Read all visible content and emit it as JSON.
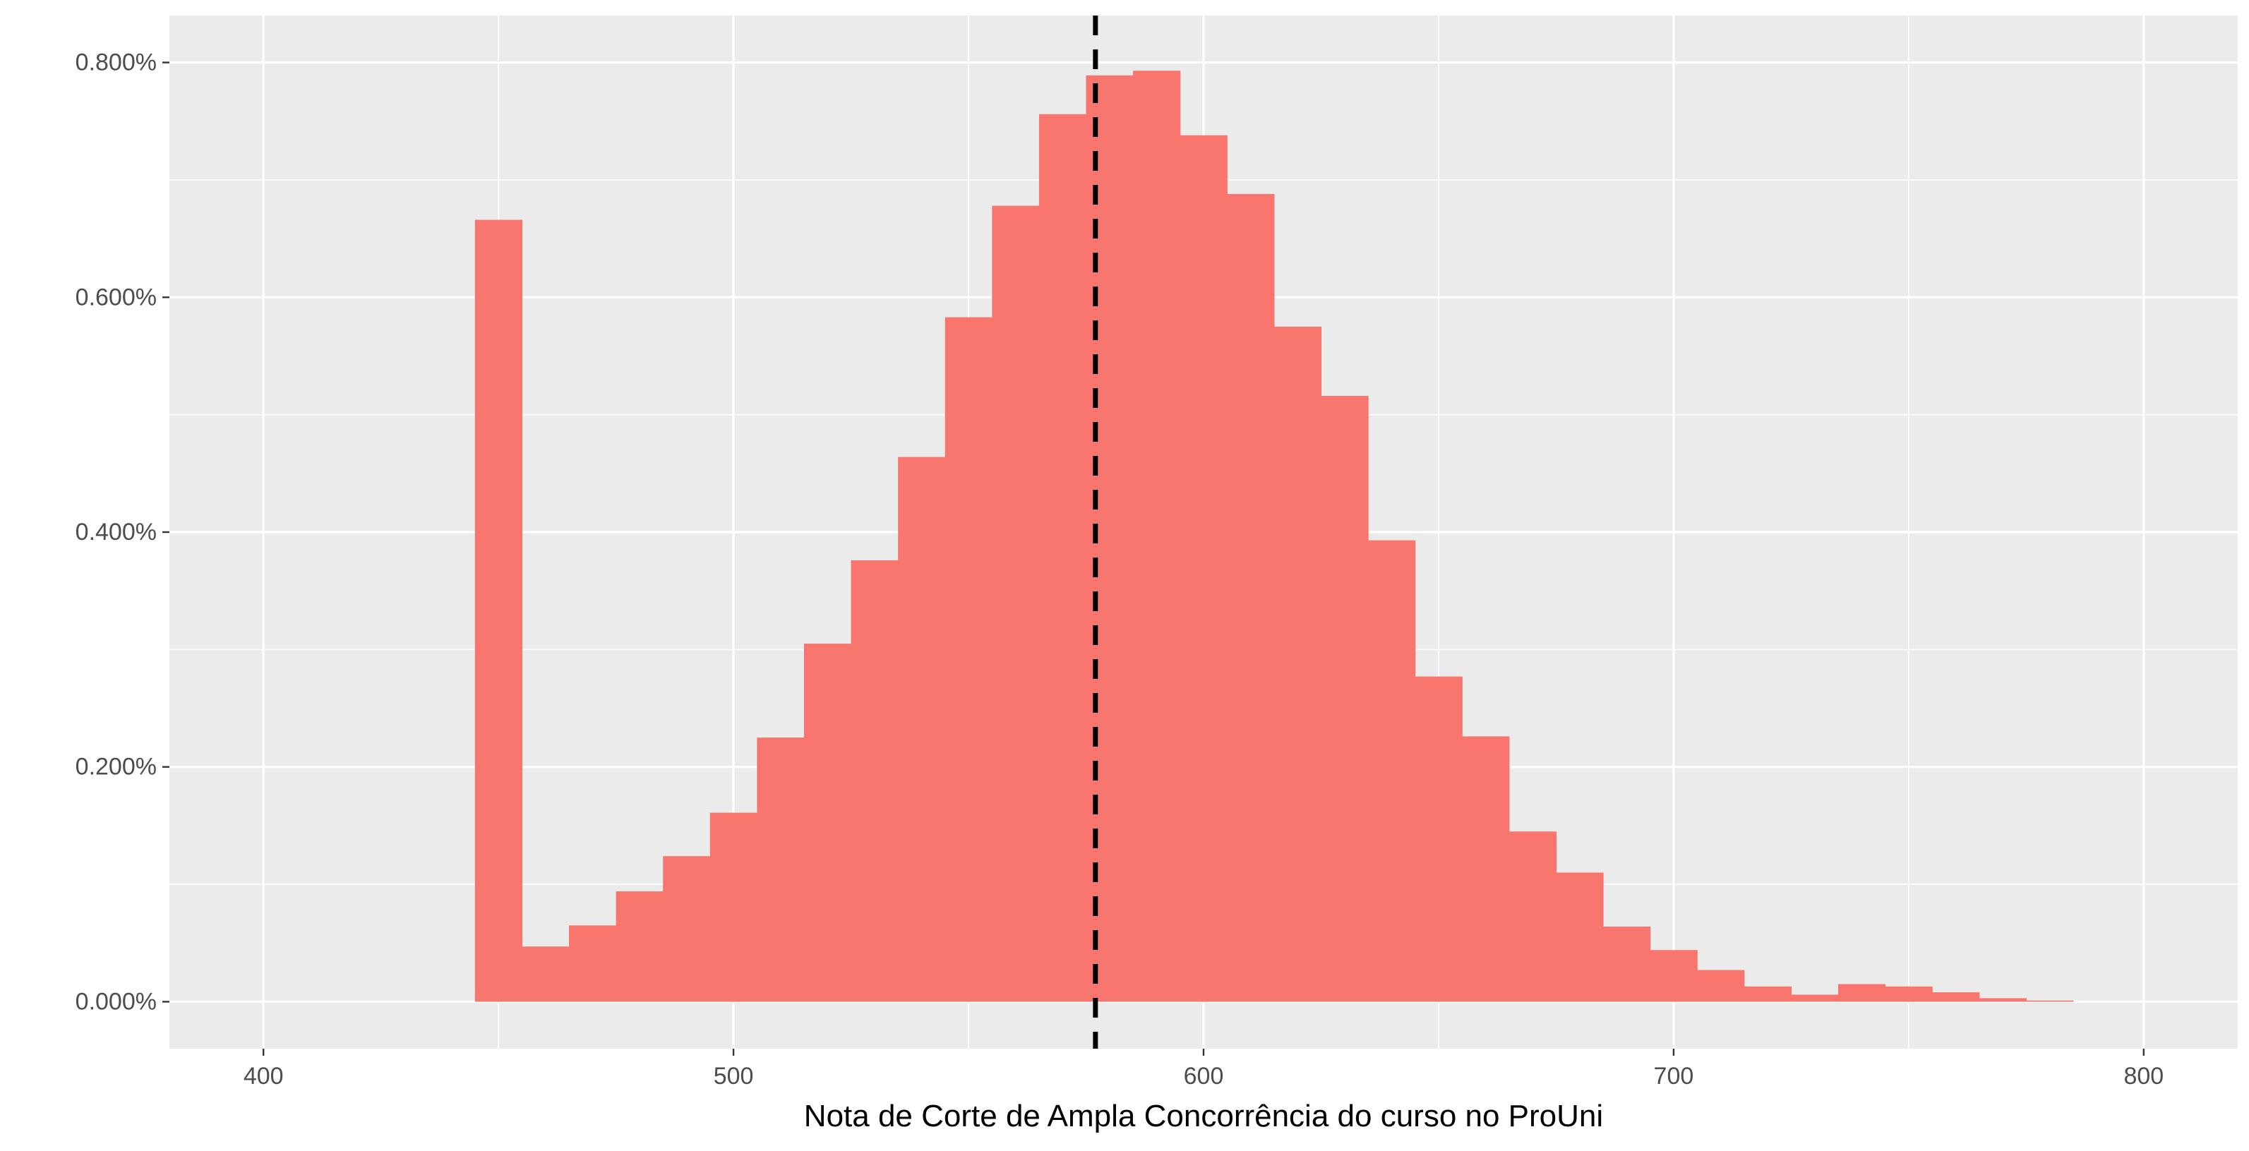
{
  "chart_data": {
    "type": "bar",
    "subtype": "histogram",
    "xlabel": "Nota de Corte de Ampla Concorrência do curso no ProUni",
    "ylabel": "",
    "xlim": [
      380,
      820
    ],
    "ylim": [
      -0.0004,
      0.0084
    ],
    "x_ticks": [
      400,
      500,
      600,
      700,
      800
    ],
    "x_tick_labels": [
      "400",
      "500",
      "600",
      "700",
      "800"
    ],
    "y_ticks": [
      0,
      0.002,
      0.004,
      0.006,
      0.008
    ],
    "y_tick_labels": [
      "0.000%",
      "0.200%",
      "0.400%",
      "0.600%",
      "0.800%"
    ],
    "bin_width": 10,
    "bins": [
      {
        "x0": 445,
        "x1": 455,
        "value": 0.00666
      },
      {
        "x0": 455,
        "x1": 465,
        "value": 0.00047
      },
      {
        "x0": 465,
        "x1": 475,
        "value": 0.00065
      },
      {
        "x0": 475,
        "x1": 485,
        "value": 0.00094
      },
      {
        "x0": 485,
        "x1": 495,
        "value": 0.00124
      },
      {
        "x0": 495,
        "x1": 505,
        "value": 0.00161
      },
      {
        "x0": 505,
        "x1": 515,
        "value": 0.00225
      },
      {
        "x0": 515,
        "x1": 525,
        "value": 0.00305
      },
      {
        "x0": 525,
        "x1": 535,
        "value": 0.00376
      },
      {
        "x0": 535,
        "x1": 545,
        "value": 0.00464
      },
      {
        "x0": 545,
        "x1": 555,
        "value": 0.00583
      },
      {
        "x0": 555,
        "x1": 565,
        "value": 0.00678
      },
      {
        "x0": 565,
        "x1": 575,
        "value": 0.00756
      },
      {
        "x0": 575,
        "x1": 585,
        "value": 0.00789
      },
      {
        "x0": 585,
        "x1": 595,
        "value": 0.00793
      },
      {
        "x0": 595,
        "x1": 605,
        "value": 0.00738
      },
      {
        "x0": 605,
        "x1": 615,
        "value": 0.00688
      },
      {
        "x0": 615,
        "x1": 625,
        "value": 0.00575
      },
      {
        "x0": 625,
        "x1": 635,
        "value": 0.00516
      },
      {
        "x0": 635,
        "x1": 645,
        "value": 0.00393
      },
      {
        "x0": 645,
        "x1": 655,
        "value": 0.00277
      },
      {
        "x0": 655,
        "x1": 665,
        "value": 0.00226
      },
      {
        "x0": 665,
        "x1": 675,
        "value": 0.00145
      },
      {
        "x0": 675,
        "x1": 685,
        "value": 0.0011
      },
      {
        "x0": 685,
        "x1": 695,
        "value": 0.00064
      },
      {
        "x0": 695,
        "x1": 705,
        "value": 0.00044
      },
      {
        "x0": 705,
        "x1": 715,
        "value": 0.00027
      },
      {
        "x0": 715,
        "x1": 725,
        "value": 0.00013
      },
      {
        "x0": 725,
        "x1": 735,
        "value": 6e-05
      },
      {
        "x0": 735,
        "x1": 745,
        "value": 0.00015
      },
      {
        "x0": 745,
        "x1": 755,
        "value": 0.00013
      },
      {
        "x0": 755,
        "x1": 765,
        "value": 8e-05
      },
      {
        "x0": 765,
        "x1": 775,
        "value": 3e-05
      },
      {
        "x0": 775,
        "x1": 785,
        "value": 1e-05
      }
    ],
    "reference_line": {
      "orientation": "vertical",
      "x": 577,
      "style": "dashed",
      "color": "#000000"
    },
    "bar_color": "#F8766D",
    "panel_background": "#EBEBEB",
    "grid": true,
    "grid_color": "#FFFFFF",
    "legend": "none"
  }
}
